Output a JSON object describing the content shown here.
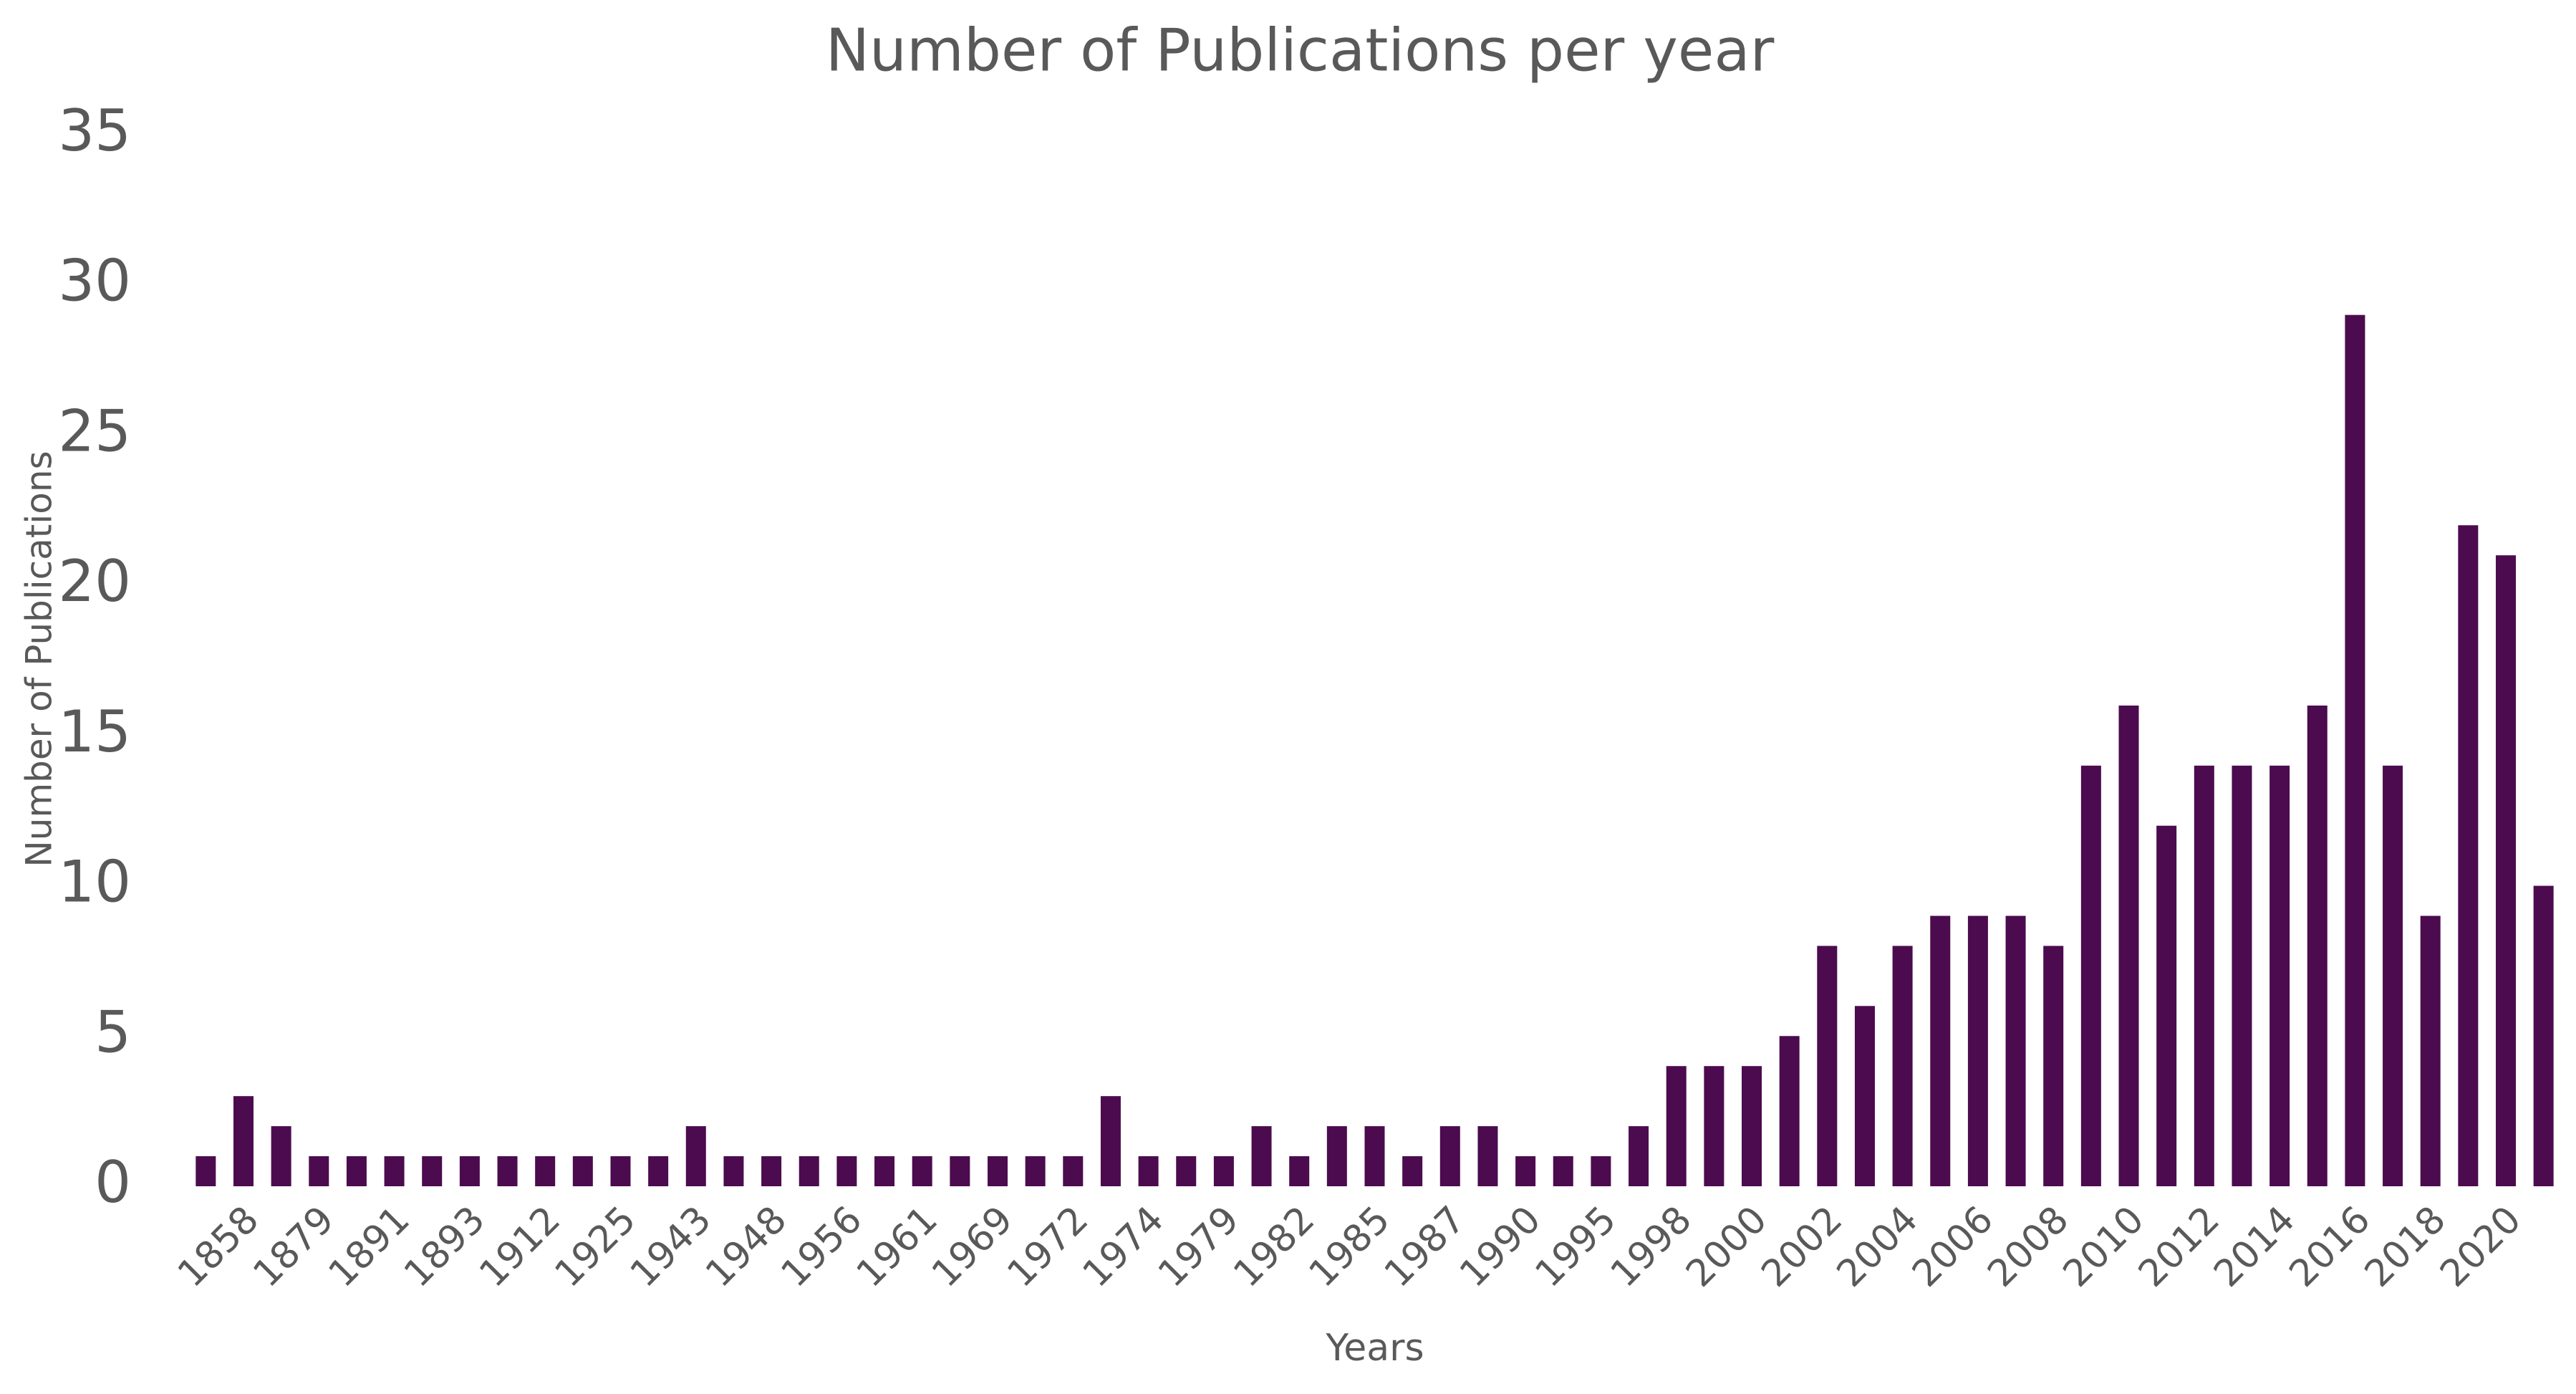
{
  "chart_data": {
    "type": "bar",
    "title": "Number of Publications per year",
    "x_label": "Years",
    "y_label": "Number of  Publications",
    "categories": [
      null,
      "1858",
      null,
      "1879",
      null,
      "1891",
      null,
      "1893",
      null,
      "1912",
      null,
      "1925",
      null,
      "1943",
      null,
      "1948",
      null,
      "1956",
      null,
      "1961",
      null,
      "1969",
      null,
      "1972",
      null,
      "1974",
      null,
      "1979",
      null,
      "1982",
      null,
      "1985",
      null,
      "1987",
      null,
      "1990",
      null,
      "1995",
      null,
      "1998",
      null,
      "2000",
      null,
      "2002",
      null,
      "2004",
      null,
      "2006",
      null,
      "2008",
      null,
      "2010",
      null,
      "2012",
      null,
      "2014",
      null,
      "2016",
      null,
      "2018",
      null,
      "2020",
      null
    ],
    "values": [
      1,
      3,
      2,
      1,
      1,
      1,
      1,
      1,
      1,
      1,
      1,
      1,
      1,
      2,
      1,
      1,
      1,
      1,
      1,
      1,
      1,
      1,
      1,
      1,
      3,
      1,
      1,
      1,
      2,
      1,
      2,
      2,
      1,
      2,
      2,
      1,
      1,
      1,
      2,
      4,
      4,
      4,
      5,
      8,
      6,
      8,
      9,
      9,
      9,
      8,
      14,
      16,
      12,
      14,
      14,
      14,
      16,
      29,
      14,
      9,
      22,
      21,
      10
    ],
    "color": "#4b0b4e",
    "ylim": [
      0,
      35
    ],
    "yticks": [
      0,
      5,
      10,
      15,
      20,
      25,
      30,
      35
    ],
    "grid": false
  }
}
